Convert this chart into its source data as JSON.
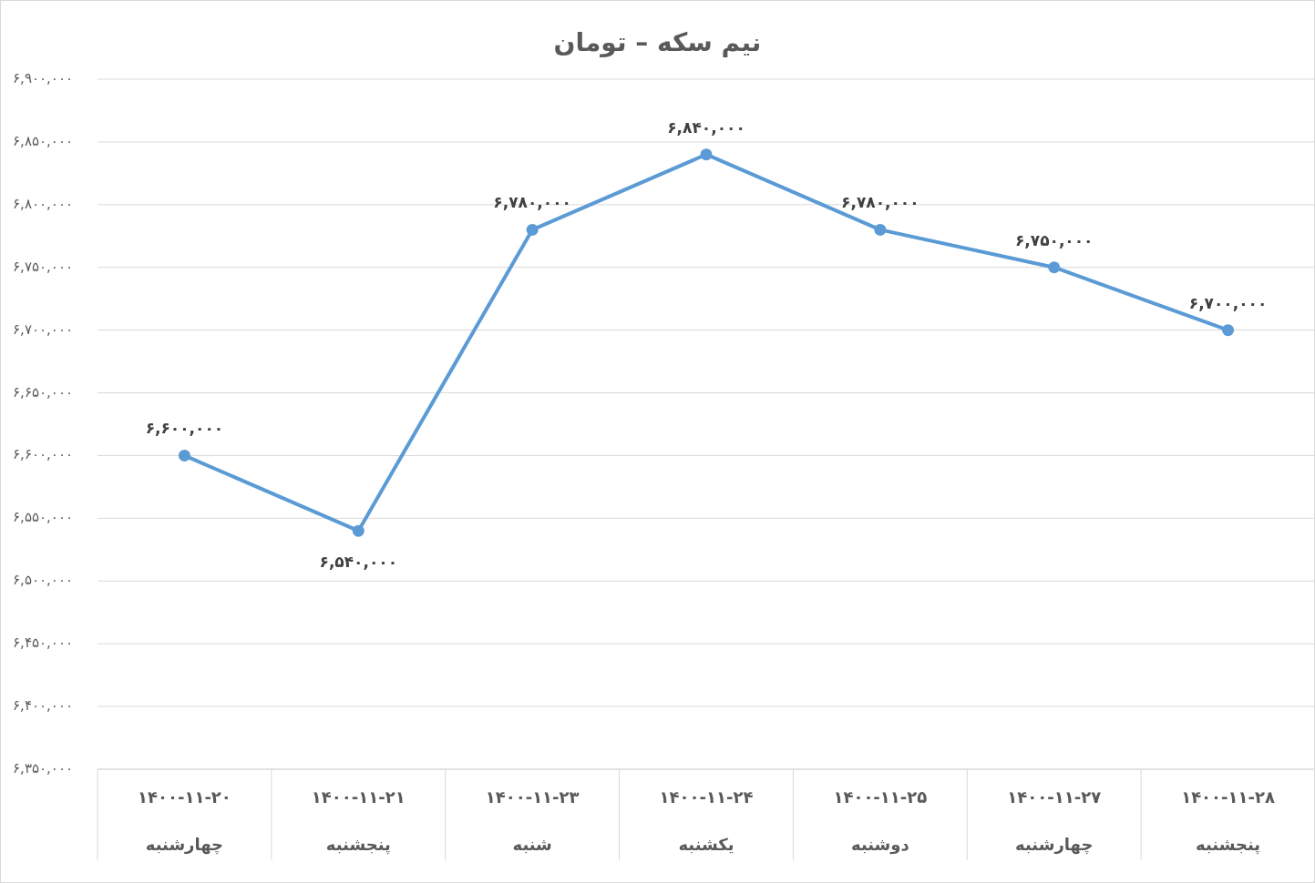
{
  "chart_data": {
    "type": "line",
    "title": "نیم سکه – تومان",
    "categories": [
      "۱۴۰۰-۱۱-۲۰\nچهارشنبه",
      "۱۴۰۰-۱۱-۲۱\nپنجشنبه",
      "۱۴۰۰-۱۱-۲۳\nشنبه",
      "۱۴۰۰-۱۱-۲۴\nیکشنبه",
      "۱۴۰۰-۱۱-۲۵\nدوشنبه",
      "۱۴۰۰-۱۱-۲۷\nچهارشنبه",
      "۱۴۰۰-۱۱-۲۸\nپنجشنبه"
    ],
    "series": [
      {
        "color": "#5b9bd5",
        "values": [
          6600000,
          6540000,
          6780000,
          6840000,
          6780000,
          6750000,
          6700000
        ],
        "value_labels": [
          "۶,۶۰۰,۰۰۰",
          "۶,۵۴۰,۰۰۰",
          "۶,۷۸۰,۰۰۰",
          "۶,۸۴۰,۰۰۰",
          "۶,۷۸۰,۰۰۰",
          "۶,۷۵۰,۰۰۰",
          "۶,۷۰۰,۰۰۰"
        ]
      }
    ],
    "ylim": [
      6350000,
      6900000
    ],
    "yticks": [
      {
        "value": 6350000,
        "label": "۶,۳۵۰,۰۰۰"
      },
      {
        "value": 6400000,
        "label": "۶,۴۰۰,۰۰۰"
      },
      {
        "value": 6450000,
        "label": "۶,۴۵۰,۰۰۰"
      },
      {
        "value": 6500000,
        "label": "۶,۵۰۰,۰۰۰"
      },
      {
        "value": 6550000,
        "label": "۶,۵۵۰,۰۰۰"
      },
      {
        "value": 6600000,
        "label": "۶,۶۰۰,۰۰۰"
      },
      {
        "value": 6650000,
        "label": "۶,۶۵۰,۰۰۰"
      },
      {
        "value": 6700000,
        "label": "۶,۷۰۰,۰۰۰"
      },
      {
        "value": 6750000,
        "label": "۶,۷۵۰,۰۰۰"
      },
      {
        "value": 6800000,
        "label": "۶,۸۰۰,۰۰۰"
      },
      {
        "value": 6850000,
        "label": "۶,۸۵۰,۰۰۰"
      },
      {
        "value": 6900000,
        "label": "۶,۹۰۰,۰۰۰"
      }
    ],
    "grid": "y",
    "marker": "circle",
    "line_style": "solid"
  }
}
